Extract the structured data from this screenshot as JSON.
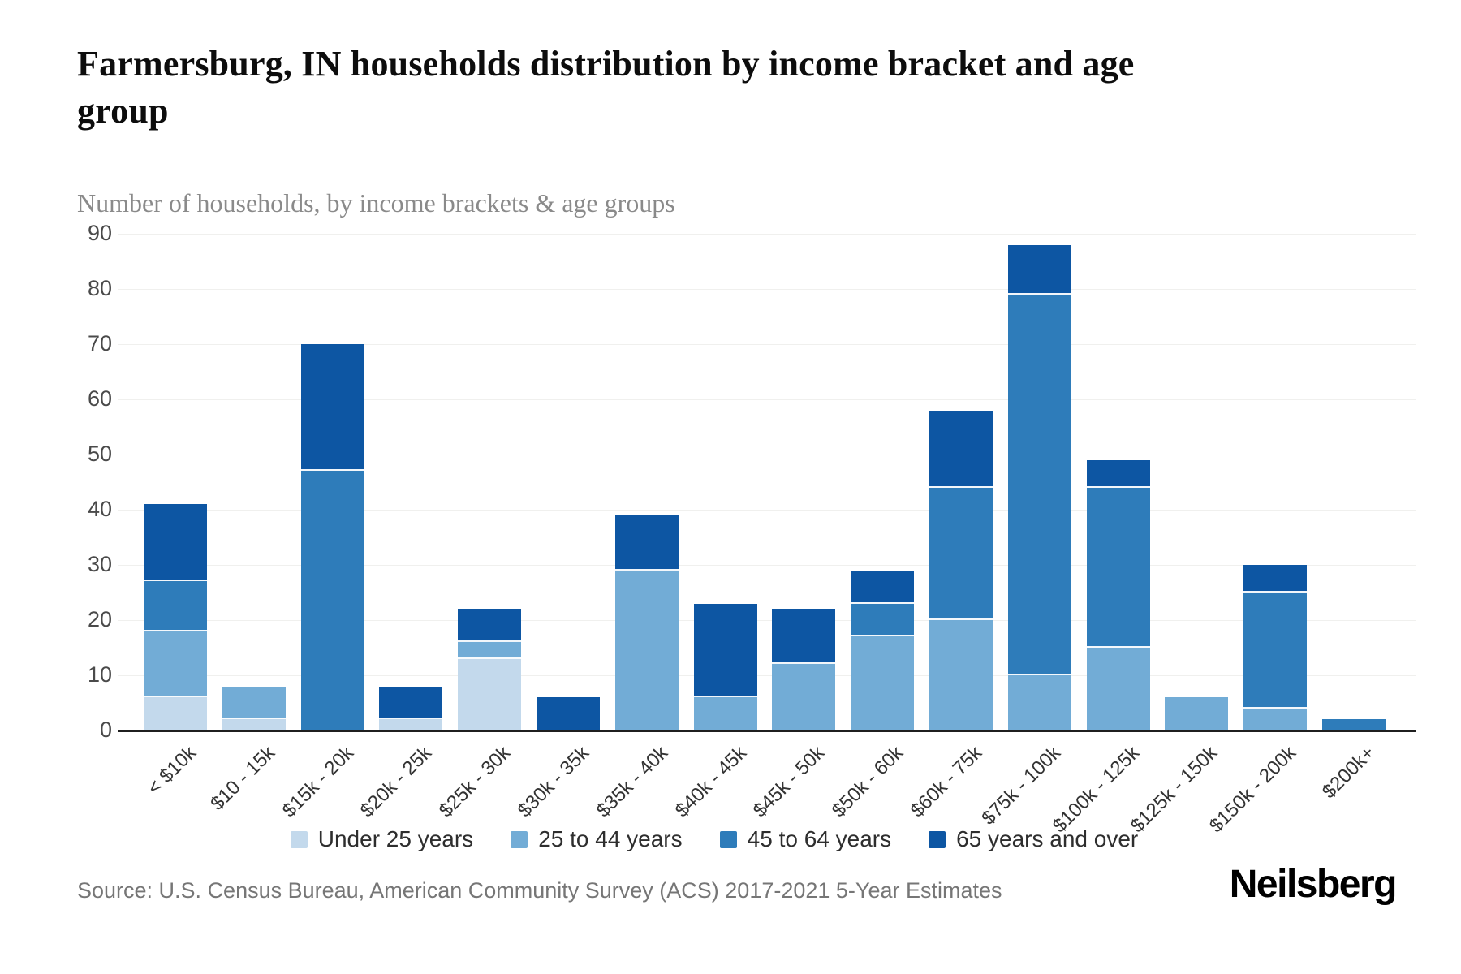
{
  "header": {
    "title": "Farmersburg, IN households distribution by income bracket and age group",
    "subtitle": "Number of households, by income brackets & age groups"
  },
  "footer": {
    "source": "Source: U.S. Census Bureau, American Community Survey (ACS) 2017-2021 5-Year Estimates",
    "brand": "Neilsberg"
  },
  "colors": {
    "under_25": "#C3D9EC",
    "age_25_44": "#72ACD6",
    "age_45_64": "#2E7CBA",
    "age_65_over": "#0D56A3",
    "axis_line": "#1f1f1f",
    "grid_line": "#f0f0ee",
    "tick_text": "#4a4a4a"
  },
  "chart_data": {
    "type": "bar",
    "stacked": true,
    "title": "Farmersburg, IN households distribution by income bracket and age group",
    "subtitle": "Number of households, by income brackets & age groups",
    "xlabel": "",
    "ylabel": "Number of households",
    "ylim": [
      0,
      90
    ],
    "ytick_interval": 10,
    "y_ticks": [
      0,
      10,
      20,
      30,
      40,
      50,
      60,
      70,
      80,
      90
    ],
    "grid": true,
    "legend_position": "bottom",
    "categories": [
      "< $10k",
      "$10 - 15k",
      "$15k - 20k",
      "$20k - 25k",
      "$25k - 30k",
      "$30k - 35k",
      "$35k - 40k",
      "$40k - 45k",
      "$45k - 50k",
      "$50k - 60k",
      "$60k - 75k",
      "$75k - 100k",
      "$100k - 125k",
      "$125k - 150k",
      "$150k - 200k",
      "$200k+"
    ],
    "series": [
      {
        "name": "Under 25 years",
        "color": "#C3D9EC",
        "values": [
          6,
          2,
          0,
          2,
          13,
          0,
          0,
          0,
          0,
          0,
          0,
          0,
          0,
          0,
          0,
          0
        ]
      },
      {
        "name": "25 to 44 years",
        "color": "#72ACD6",
        "values": [
          12,
          6,
          0,
          0,
          3,
          0,
          29,
          6,
          12,
          17,
          20,
          10,
          15,
          6,
          4,
          0
        ]
      },
      {
        "name": "45 to 64 years",
        "color": "#2E7CBA",
        "values": [
          9,
          0,
          47,
          0,
          0,
          0,
          0,
          0,
          0,
          6,
          24,
          69,
          29,
          0,
          21,
          2
        ]
      },
      {
        "name": "65 years and over",
        "color": "#0D56A3",
        "values": [
          14,
          0,
          23,
          6,
          6,
          6,
          10,
          17,
          10,
          6,
          14,
          9,
          5,
          0,
          5,
          0
        ]
      }
    ],
    "bar_totals": [
      41,
      8,
      70,
      8,
      22,
      6,
      39,
      23,
      22,
      29,
      58,
      88,
      49,
      6,
      30,
      2
    ]
  }
}
